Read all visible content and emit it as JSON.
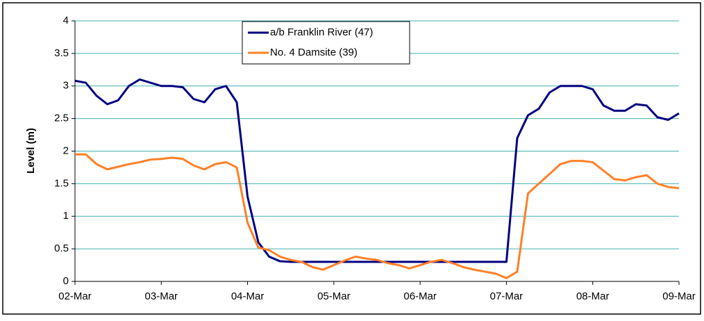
{
  "chart_data": {
    "type": "line",
    "ylabel": "Level (m)",
    "x": [
      0,
      0.125,
      0.25,
      0.375,
      0.5,
      0.625,
      0.75,
      0.875,
      1,
      1.125,
      1.25,
      1.375,
      1.5,
      1.625,
      1.75,
      1.875,
      2,
      2.125,
      2.25,
      2.375,
      2.5,
      2.625,
      2.75,
      2.875,
      3,
      3.125,
      3.25,
      3.375,
      3.5,
      3.625,
      3.75,
      3.875,
      4,
      4.125,
      4.25,
      4.375,
      4.5,
      4.625,
      4.75,
      4.875,
      5,
      5.125,
      5.25,
      5.375,
      5.5,
      5.625,
      5.75,
      5.875,
      6,
      6.125,
      6.25,
      6.375,
      6.5,
      6.625,
      6.75,
      6.875,
      7
    ],
    "series": [
      {
        "name": "a/b Franklin River (47)",
        "color": "#000080",
        "values": [
          3.08,
          3.05,
          2.85,
          2.72,
          2.78,
          3.0,
          3.1,
          3.05,
          3.0,
          3.0,
          2.98,
          2.8,
          2.75,
          2.95,
          3.0,
          2.75,
          1.3,
          0.6,
          0.38,
          0.31,
          0.3,
          0.3,
          0.3,
          0.3,
          0.3,
          0.3,
          0.3,
          0.3,
          0.3,
          0.3,
          0.3,
          0.3,
          0.3,
          0.3,
          0.3,
          0.3,
          0.3,
          0.3,
          0.3,
          0.3,
          0.3,
          2.2,
          2.55,
          2.65,
          2.9,
          3.0,
          3.0,
          3.0,
          2.95,
          2.7,
          2.62,
          2.62,
          2.72,
          2.7,
          2.52,
          2.48,
          2.58
        ]
      },
      {
        "name": "No. 4 Damsite (39)",
        "color": "#ff7f27",
        "values": [
          1.95,
          1.95,
          1.8,
          1.72,
          1.76,
          1.8,
          1.83,
          1.87,
          1.88,
          1.9,
          1.88,
          1.78,
          1.72,
          1.8,
          1.83,
          1.75,
          0.9,
          0.52,
          0.48,
          0.38,
          0.33,
          0.3,
          0.22,
          0.18,
          0.25,
          0.32,
          0.38,
          0.35,
          0.33,
          0.28,
          0.25,
          0.2,
          0.25,
          0.3,
          0.33,
          0.28,
          0.22,
          0.18,
          0.15,
          0.12,
          0.05,
          0.15,
          1.35,
          1.5,
          1.65,
          1.8,
          1.85,
          1.85,
          1.83,
          1.7,
          1.57,
          1.55,
          1.6,
          1.63,
          1.5,
          1.45,
          1.43
        ]
      }
    ],
    "xlim": [
      0,
      7
    ],
    "xticks": [
      {
        "value": 0,
        "label": "02-Mar"
      },
      {
        "value": 1,
        "label": "03-Mar"
      },
      {
        "value": 2,
        "label": "04-Mar"
      },
      {
        "value": 3,
        "label": "05-Mar"
      },
      {
        "value": 4,
        "label": "06-Mar"
      },
      {
        "value": 5,
        "label": "07-Mar"
      },
      {
        "value": 6,
        "label": "08-Mar"
      },
      {
        "value": 7,
        "label": "09-Mar"
      }
    ],
    "ylim": [
      0,
      4
    ],
    "yticks": [
      0,
      0.5,
      1,
      1.5,
      2,
      2.5,
      3,
      3.5,
      4
    ],
    "grid": true,
    "grid_color": "#40b0b0",
    "legend": "top"
  }
}
